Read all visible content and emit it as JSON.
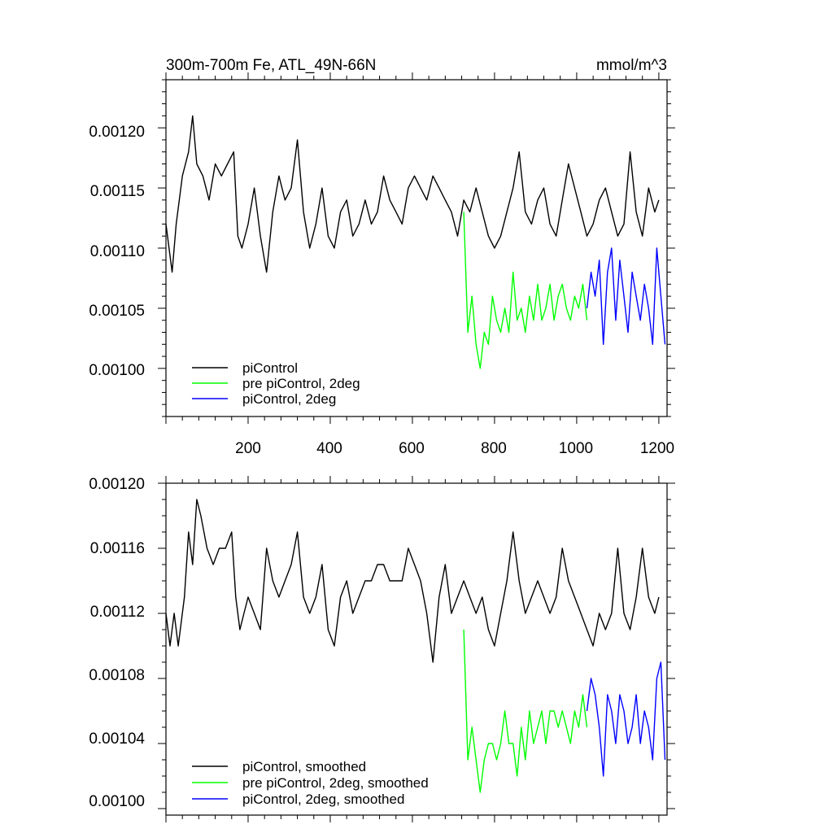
{
  "colors": {
    "black": "#000000",
    "green": "#00ff00",
    "blue": "#0000ff",
    "background": "#ffffff"
  },
  "chart_data": [
    {
      "type": "line",
      "title_left": "300m-700m Fe, ATL_49N-66N",
      "title_right": "mmol/m^3",
      "xlim": [
        0,
        1220
      ],
      "ylim": [
        0.00096,
        0.00124
      ],
      "x_ticks": [
        "200",
        "400",
        "600",
        "800",
        "1000",
        "1200"
      ],
      "y_ticks": [
        "0.00120",
        "0.00115",
        "0.00110",
        "0.00105",
        "0.00100"
      ],
      "legend_position": "bottom-left",
      "series": [
        {
          "name": "piControl",
          "color": "#000000",
          "x": [
            0,
            15,
            25,
            40,
            55,
            65,
            75,
            90,
            105,
            120,
            135,
            150,
            165,
            175,
            185,
            200,
            215,
            230,
            245,
            260,
            275,
            290,
            305,
            320,
            335,
            350,
            365,
            380,
            395,
            410,
            425,
            440,
            455,
            470,
            485,
            500,
            515,
            530,
            545,
            560,
            575,
            590,
            605,
            620,
            635,
            650,
            665,
            680,
            695,
            710,
            725,
            740,
            755,
            770,
            785,
            800,
            815,
            830,
            845,
            860,
            875,
            890,
            905,
            920,
            935,
            950,
            965,
            980,
            995,
            1010,
            1025,
            1040,
            1055,
            1070,
            1085,
            1100,
            1115,
            1130,
            1145,
            1160,
            1175,
            1190,
            1200
          ],
          "y": [
            0.00112,
            0.00108,
            0.00112,
            0.00116,
            0.00118,
            0.00121,
            0.00117,
            0.00116,
            0.00114,
            0.00117,
            0.00116,
            0.00117,
            0.00118,
            0.00111,
            0.0011,
            0.00112,
            0.00115,
            0.00111,
            0.00108,
            0.00113,
            0.00116,
            0.00114,
            0.00115,
            0.00119,
            0.00113,
            0.0011,
            0.00112,
            0.00115,
            0.00111,
            0.0011,
            0.00113,
            0.00114,
            0.00111,
            0.00112,
            0.00114,
            0.00112,
            0.00113,
            0.00116,
            0.00114,
            0.00113,
            0.00112,
            0.00115,
            0.00116,
            0.00115,
            0.00114,
            0.00116,
            0.00115,
            0.00114,
            0.00113,
            0.00111,
            0.00114,
            0.00113,
            0.00115,
            0.00113,
            0.00111,
            0.0011,
            0.00111,
            0.00113,
            0.00115,
            0.00118,
            0.00113,
            0.00112,
            0.00114,
            0.00115,
            0.00112,
            0.00111,
            0.00114,
            0.00117,
            0.00115,
            0.00113,
            0.00111,
            0.00112,
            0.00114,
            0.00115,
            0.00113,
            0.00111,
            0.00112,
            0.00118,
            0.00113,
            0.00111,
            0.00115,
            0.00113,
            0.00114
          ]
        },
        {
          "name": "pre piControl, 2deg",
          "color": "#00ff00",
          "x": [
            725,
            735,
            745,
            755,
            765,
            775,
            785,
            795,
            805,
            815,
            825,
            835,
            845,
            855,
            865,
            875,
            885,
            895,
            905,
            915,
            925,
            935,
            945,
            955,
            965,
            975,
            985,
            995,
            1005,
            1015,
            1025
          ],
          "y": [
            0.00113,
            0.00103,
            0.00106,
            0.00102,
            0.001,
            0.00103,
            0.00102,
            0.00106,
            0.00104,
            0.00103,
            0.00105,
            0.00103,
            0.00108,
            0.00104,
            0.00105,
            0.00103,
            0.00106,
            0.00104,
            0.00107,
            0.00104,
            0.00105,
            0.00107,
            0.00104,
            0.00106,
            0.00107,
            0.00105,
            0.00104,
            0.00106,
            0.00105,
            0.00107,
            0.00104
          ]
        },
        {
          "name": "piControl, 2deg",
          "color": "#0000ff",
          "x": [
            1025,
            1035,
            1045,
            1055,
            1065,
            1075,
            1085,
            1095,
            1105,
            1115,
            1125,
            1135,
            1145,
            1155,
            1165,
            1175,
            1185,
            1195,
            1205,
            1215
          ],
          "y": [
            0.00105,
            0.00108,
            0.00106,
            0.00109,
            0.00102,
            0.00108,
            0.0011,
            0.00104,
            0.00109,
            0.00106,
            0.00103,
            0.00108,
            0.00106,
            0.00104,
            0.00107,
            0.00105,
            0.00102,
            0.0011,
            0.00106,
            0.00102
          ]
        }
      ]
    },
    {
      "type": "line",
      "xlim": [
        0,
        1220
      ],
      "ylim": [
        0.000996,
        0.0012
      ],
      "y_ticks": [
        "0.00120",
        "0.00116",
        "0.00112",
        "0.00108",
        "0.00104",
        "0.00100"
      ],
      "legend_position": "bottom-left",
      "series": [
        {
          "name": "piControl, smoothed",
          "color": "#000000",
          "x": [
            0,
            10,
            20,
            30,
            45,
            55,
            65,
            75,
            85,
            100,
            115,
            130,
            145,
            160,
            170,
            180,
            190,
            200,
            215,
            230,
            245,
            260,
            275,
            290,
            305,
            320,
            335,
            350,
            365,
            380,
            395,
            410,
            425,
            440,
            455,
            470,
            485,
            500,
            515,
            530,
            545,
            560,
            575,
            590,
            605,
            620,
            635,
            650,
            665,
            680,
            695,
            710,
            725,
            740,
            755,
            770,
            785,
            800,
            815,
            830,
            845,
            860,
            875,
            890,
            905,
            920,
            935,
            950,
            965,
            980,
            995,
            1010,
            1025,
            1040,
            1055,
            1070,
            1085,
            1100,
            1115,
            1130,
            1145,
            1160,
            1175,
            1190,
            1200
          ],
          "y": [
            0.00112,
            0.0011,
            0.00112,
            0.0011,
            0.00113,
            0.00117,
            0.00115,
            0.00119,
            0.00118,
            0.00116,
            0.00115,
            0.00116,
            0.00116,
            0.00117,
            0.00113,
            0.00111,
            0.00112,
            0.00113,
            0.00112,
            0.00111,
            0.00116,
            0.00114,
            0.00113,
            0.00114,
            0.00115,
            0.00117,
            0.00113,
            0.00112,
            0.00113,
            0.00115,
            0.00111,
            0.0011,
            0.00113,
            0.00114,
            0.00112,
            0.00113,
            0.00114,
            0.00114,
            0.00115,
            0.00115,
            0.00114,
            0.00114,
            0.00114,
            0.00116,
            0.00115,
            0.00114,
            0.00112,
            0.00109,
            0.00113,
            0.00115,
            0.00112,
            0.00113,
            0.00114,
            0.00113,
            0.00112,
            0.00113,
            0.00111,
            0.0011,
            0.00112,
            0.00114,
            0.00117,
            0.00114,
            0.00112,
            0.00113,
            0.00114,
            0.00113,
            0.00112,
            0.00113,
            0.00116,
            0.00114,
            0.00113,
            0.00112,
            0.00111,
            0.0011,
            0.00112,
            0.00111,
            0.00112,
            0.00116,
            0.00112,
            0.00111,
            0.00113,
            0.00116,
            0.00113,
            0.00112,
            0.00113
          ]
        },
        {
          "name": "pre piControl, 2deg, smoothed",
          "color": "#00ff00",
          "x": [
            725,
            735,
            745,
            755,
            765,
            775,
            785,
            795,
            805,
            815,
            825,
            835,
            845,
            855,
            865,
            875,
            885,
            895,
            905,
            915,
            925,
            935,
            945,
            955,
            965,
            975,
            985,
            995,
            1005,
            1015,
            1025
          ],
          "y": [
            0.00111,
            0.00103,
            0.00105,
            0.00103,
            0.00101,
            0.00103,
            0.00104,
            0.00104,
            0.00103,
            0.00104,
            0.00106,
            0.00104,
            0.00104,
            0.00102,
            0.00105,
            0.00103,
            0.00106,
            0.00104,
            0.00105,
            0.00106,
            0.00104,
            0.00106,
            0.00106,
            0.00105,
            0.00106,
            0.00105,
            0.00104,
            0.00106,
            0.00105,
            0.00107,
            0.00105
          ]
        },
        {
          "name": "piControl, 2deg, smoothed",
          "color": "#0000ff",
          "x": [
            1025,
            1035,
            1045,
            1055,
            1065,
            1075,
            1085,
            1095,
            1105,
            1115,
            1125,
            1135,
            1145,
            1155,
            1165,
            1175,
            1185,
            1195,
            1205,
            1215
          ],
          "y": [
            0.00106,
            0.00108,
            0.00107,
            0.00105,
            0.00102,
            0.00107,
            0.00106,
            0.00104,
            0.00107,
            0.00106,
            0.00104,
            0.00105,
            0.00107,
            0.00104,
            0.00106,
            0.00105,
            0.00103,
            0.00108,
            0.00109,
            0.00103
          ]
        }
      ]
    }
  ]
}
